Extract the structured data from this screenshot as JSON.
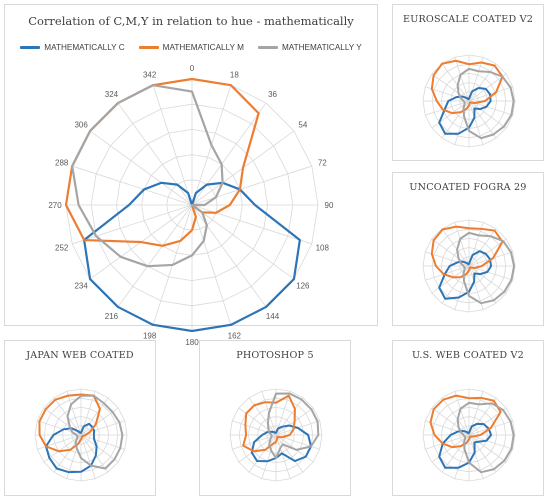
{
  "colors": {
    "c": "#2e75b6",
    "m": "#ed7d31",
    "y": "#a5a5a5",
    "grid": "#d9d9d9"
  },
  "chart_data": [
    {
      "type": "radar",
      "title": "Correlation of C,M,Y in relation to hue - mathematically",
      "legend": [
        "MATHEMATICALLY C",
        "MATHEMATICALLY M",
        "MATHEMATICALLY Y"
      ],
      "legend_position": "top",
      "angles": [
        "0",
        "18",
        "36",
        "54",
        "72",
        "90",
        "108",
        "126",
        "144",
        "162",
        "180",
        "198",
        "216",
        "234",
        "252",
        "270",
        "288",
        "306",
        "324",
        "342"
      ],
      "rlim": [
        0,
        1
      ],
      "grid": true,
      "series": [
        {
          "name": "MATHEMATICALLY C",
          "values": [
            0.0,
            0.1,
            0.2,
            0.3,
            0.4,
            0.5,
            0.9,
            1.0,
            1.0,
            1.0,
            1.0,
            1.0,
            1.0,
            1.0,
            0.9,
            0.5,
            0.4,
            0.3,
            0.2,
            0.1
          ]
        },
        {
          "name": "MATHEMATICALLY M",
          "values": [
            1.0,
            1.0,
            0.9,
            0.5,
            0.4,
            0.3,
            0.2,
            0.1,
            0.0,
            0.1,
            0.2,
            0.3,
            0.4,
            0.5,
            0.9,
            1.0,
            1.0,
            1.0,
            1.0,
            1.0
          ]
        },
        {
          "name": "MATHEMATICALLY Y",
          "values": [
            0.9,
            0.5,
            0.4,
            0.3,
            0.2,
            0.1,
            0.0,
            0.1,
            0.2,
            0.3,
            0.4,
            0.5,
            0.6,
            0.7,
            0.8,
            0.9,
            1.0,
            1.0,
            1.0,
            1.0
          ]
        }
      ]
    },
    {
      "type": "radar",
      "title": "EUROSCALE COATED V2",
      "rlim": [
        0,
        1
      ],
      "grid": true,
      "series": [
        {
          "values": [
            0.05,
            0.22,
            0.35,
            0.45,
            0.48,
            0.47,
            0.4,
            0.3,
            0.2,
            0.38,
            0.58,
            0.75,
            0.88,
            0.8,
            0.55,
            0.45,
            0.28,
            0.16,
            0.08,
            0.04
          ]
        },
        {
          "values": [
            0.8,
            0.88,
            0.95,
            0.9,
            0.62,
            0.35,
            0.14,
            0.06,
            0.04,
            0.05,
            0.1,
            0.18,
            0.3,
            0.45,
            0.6,
            0.7,
            0.85,
            0.95,
            1.0,
            0.92
          ]
        },
        {
          "values": [
            0.7,
            0.68,
            0.78,
            0.9,
            0.95,
            0.97,
            0.97,
            0.94,
            0.9,
            0.85,
            0.65,
            0.35,
            0.2,
            0.12,
            0.1,
            0.12,
            0.18,
            0.28,
            0.42,
            0.6
          ]
        }
      ]
    },
    {
      "type": "radar",
      "title": "UNCOATED FOGRA 29",
      "rlim": [
        0,
        1
      ],
      "grid": true,
      "series": [
        {
          "values": [
            0.05,
            0.25,
            0.4,
            0.45,
            0.48,
            0.48,
            0.42,
            0.3,
            0.2,
            0.36,
            0.56,
            0.72,
            0.88,
            0.8,
            0.55,
            0.42,
            0.26,
            0.16,
            0.08,
            0.04
          ]
        },
        {
          "values": [
            0.82,
            0.85,
            0.95,
            0.9,
            0.55,
            0.28,
            0.14,
            0.06,
            0.04,
            0.05,
            0.1,
            0.18,
            0.3,
            0.42,
            0.58,
            0.72,
            0.85,
            0.95,
            0.98,
            0.9
          ]
        },
        {
          "values": [
            0.72,
            0.7,
            0.8,
            0.92,
            0.96,
            0.98,
            0.97,
            0.95,
            0.92,
            0.85,
            0.65,
            0.35,
            0.2,
            0.12,
            0.1,
            0.12,
            0.18,
            0.28,
            0.44,
            0.62
          ]
        }
      ]
    },
    {
      "type": "radar",
      "title": "JAPAN WEB COATED",
      "rlim": [
        0,
        1
      ],
      "grid": true,
      "series": [
        {
          "values": [
            0.05,
            0.2,
            0.3,
            0.3,
            0.3,
            0.28,
            0.3,
            0.42,
            0.55,
            0.7,
            0.8,
            0.85,
            0.9,
            0.85,
            0.8,
            0.6,
            0.4,
            0.25,
            0.1,
            0.05
          ]
        },
        {
          "values": [
            0.88,
            0.9,
            0.7,
            0.4,
            0.2,
            0.1,
            0.06,
            0.04,
            0.04,
            0.06,
            0.1,
            0.2,
            0.4,
            0.6,
            0.8,
            0.9,
            0.95,
            0.95,
            0.95,
            0.9
          ]
        },
        {
          "values": [
            0.85,
            0.9,
            0.85,
            0.85,
            0.88,
            0.9,
            0.9,
            0.9,
            0.9,
            0.7,
            0.5,
            0.3,
            0.2,
            0.1,
            0.08,
            0.1,
            0.2,
            0.3,
            0.5,
            0.7
          ]
        }
      ]
    },
    {
      "type": "radar",
      "title": "PHOTOSHOP 5",
      "rlim": [
        0,
        1
      ],
      "grid": true,
      "series": [
        {
          "values": [
            0.05,
            0.15,
            0.22,
            0.35,
            0.5,
            0.7,
            0.8,
            0.8,
            0.7,
            0.42,
            0.5,
            0.6,
            0.7,
            0.65,
            0.5,
            0.3,
            0.2,
            0.12,
            0.08,
            0.05
          ]
        },
        {
          "values": [
            0.7,
            0.9,
            0.7,
            0.5,
            0.4,
            0.3,
            0.15,
            0.08,
            0.05,
            0.08,
            0.15,
            0.2,
            0.4,
            0.6,
            0.75,
            0.65,
            0.7,
            0.8,
            0.8,
            0.75
          ]
        },
        {
          "values": [
            0.9,
            0.95,
            0.95,
            0.95,
            0.95,
            0.92,
            0.8,
            0.55,
            0.25,
            0.3,
            0.5,
            0.35,
            0.25,
            0.15,
            0.1,
            0.1,
            0.15,
            0.2,
            0.3,
            0.5
          ]
        }
      ]
    },
    {
      "type": "radar",
      "title": "U.S. WEB COATED V2",
      "rlim": [
        0,
        1
      ],
      "grid": true,
      "series": [
        {
          "values": [
            0.05,
            0.2,
            0.3,
            0.4,
            0.45,
            0.48,
            0.4,
            0.25,
            0.2,
            0.4,
            0.6,
            0.75,
            0.88,
            0.8,
            0.6,
            0.4,
            0.25,
            0.15,
            0.08,
            0.04
          ]
        },
        {
          "values": [
            0.8,
            0.85,
            0.92,
            0.85,
            0.5,
            0.25,
            0.1,
            0.06,
            0.04,
            0.05,
            0.1,
            0.18,
            0.3,
            0.45,
            0.6,
            0.75,
            0.88,
            0.95,
            0.95,
            0.9
          ]
        },
        {
          "values": [
            0.7,
            0.7,
            0.85,
            0.92,
            0.95,
            0.97,
            0.97,
            0.95,
            0.92,
            0.85,
            0.6,
            0.32,
            0.18,
            0.1,
            0.1,
            0.12,
            0.18,
            0.28,
            0.42,
            0.6
          ]
        }
      ]
    }
  ]
}
